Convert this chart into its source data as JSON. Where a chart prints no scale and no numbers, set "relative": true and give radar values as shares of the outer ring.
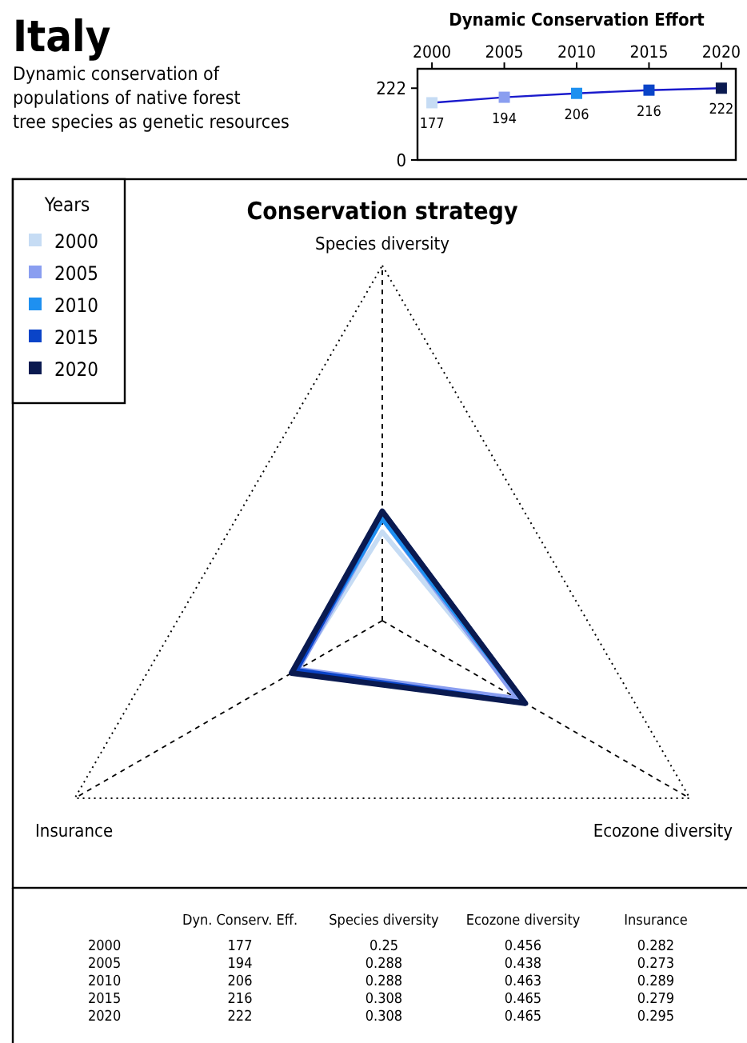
{
  "chart_data": [
    {
      "type": "other",
      "title": "Italy",
      "subtitle": "Dynamic conservation of\npopulations of native forest\ntree species as genetic resources"
    },
    {
      "type": "line",
      "title": "Dynamic Conservation Effort",
      "x": [
        2000,
        2005,
        2010,
        2015,
        2020
      ],
      "values": [
        177,
        194,
        206,
        216,
        222
      ],
      "color": "#1a1acc",
      "colors": [
        "#c6dcf4",
        "#8a9ef0",
        "#1e90f0",
        "#0a44c8",
        "#0a1a50"
      ],
      "xlim": [
        1999,
        2021
      ],
      "xticks": [
        2000,
        2005,
        2010,
        2015,
        2020
      ],
      "ylim": [
        0,
        282
      ],
      "yticks": [
        0,
        222
      ],
      "marker": "square",
      "line_style": "solid",
      "data_labels": true
    },
    {
      "type": "radar",
      "title": "Conservation strategy",
      "categories": [
        "Species diversity",
        "Ecozone diversity",
        "Insurance"
      ],
      "relative": true,
      "legend": "top left",
      "legend_title": "Years",
      "series": [
        {
          "name": "2000",
          "color": "#c6dcf4",
          "values": [
            0.25,
            0.456,
            0.282
          ]
        },
        {
          "name": "2005",
          "color": "#8a9ef0",
          "values": [
            0.288,
            0.438,
            0.273
          ]
        },
        {
          "name": "2010",
          "color": "#1e90f0",
          "values": [
            0.288,
            0.463,
            0.289
          ]
        },
        {
          "name": "2015",
          "color": "#0a44c8",
          "values": [
            0.308,
            0.465,
            0.279
          ]
        },
        {
          "name": "2020",
          "color": "#0a1a50",
          "values": [
            0.308,
            0.465,
            0.295
          ]
        }
      ]
    },
    {
      "type": "heatmap",
      "categories": [
        "Dyn. Conserv. Eff.",
        "Species diversity",
        "Ecozone diversity",
        "Insurance"
      ],
      "y_categories": [
        "2000",
        "2005",
        "2010",
        "2015",
        "2020"
      ],
      "data_labels": true,
      "cells": [
        [
          177,
          0.25,
          0.456,
          0.282
        ],
        [
          194,
          0.288,
          0.438,
          0.273
        ],
        [
          206,
          0.288,
          0.463,
          0.289
        ],
        [
          216,
          0.308,
          0.465,
          0.279
        ],
        [
          222,
          0.308,
          0.465,
          0.295
        ]
      ]
    }
  ]
}
